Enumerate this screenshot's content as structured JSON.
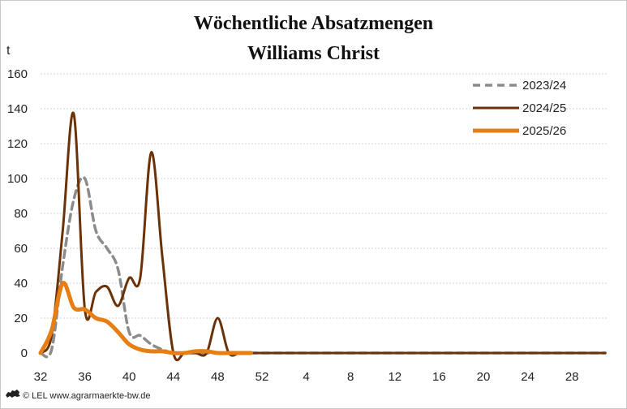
{
  "chart_data": {
    "type": "line",
    "title": "Wöchentliche Absatzmengen",
    "subtitle": "Williams Christ",
    "ylabel": "t",
    "ylim": [
      0,
      160
    ],
    "yticks": [
      0,
      20,
      40,
      60,
      80,
      100,
      120,
      140,
      160
    ],
    "xlabels": [
      "32",
      "36",
      "40",
      "44",
      "48",
      "52",
      "4",
      "8",
      "12",
      "16",
      "20",
      "24",
      "28"
    ],
    "weeks": [
      "32",
      "33",
      "34",
      "35",
      "36",
      "37",
      "38",
      "39",
      "40",
      "41",
      "42",
      "43",
      "44",
      "45",
      "46",
      "47",
      "48",
      "49",
      "50",
      "51",
      "52",
      "1",
      "2",
      "3",
      "4",
      "5",
      "6",
      "7",
      "8",
      "9",
      "10",
      "11",
      "12",
      "13",
      "14",
      "15",
      "16",
      "17",
      "18",
      "19",
      "20",
      "21",
      "22",
      "23",
      "24",
      "25",
      "26",
      "27",
      "28",
      "29",
      "30",
      "31"
    ],
    "grid": true,
    "legend_position": "top-right",
    "series": [
      {
        "name": "2023/24",
        "color": "#8c8c8c",
        "dash": true,
        "width": 3.5,
        "values": [
          0,
          2,
          50,
          88,
          100,
          70,
          60,
          48,
          12,
          10,
          5,
          2,
          0,
          0,
          0,
          0,
          0,
          0,
          0,
          0,
          0,
          0,
          0,
          0,
          0,
          0,
          0,
          0,
          0,
          0,
          0,
          0,
          0,
          0,
          0,
          0,
          0,
          0,
          0,
          0,
          0,
          0,
          0,
          0,
          0,
          0,
          0,
          0,
          0,
          0,
          0,
          0
        ]
      },
      {
        "name": "2024/25",
        "color": "#6b3208",
        "dash": false,
        "width": 3,
        "values": [
          0,
          10,
          70,
          137,
          25,
          35,
          38,
          27,
          43,
          43,
          115,
          55,
          0,
          0,
          0,
          0,
          20,
          0,
          0,
          0,
          0,
          0,
          0,
          0,
          0,
          0,
          0,
          0,
          0,
          0,
          0,
          0,
          0,
          0,
          0,
          0,
          0,
          0,
          0,
          0,
          0,
          0,
          0,
          0,
          0,
          0,
          0,
          0,
          0,
          0,
          0,
          0
        ]
      },
      {
        "name": "2025/26",
        "color": "#e67e13",
        "dash": false,
        "width": 5,
        "values": [
          0,
          13,
          40,
          26,
          25,
          20,
          18,
          12,
          5,
          2,
          1,
          1,
          0,
          0,
          1,
          1,
          0,
          0,
          0,
          0
        ]
      }
    ]
  },
  "footer": {
    "text": "© LEL www.agrarmaerkte-bw.de"
  }
}
